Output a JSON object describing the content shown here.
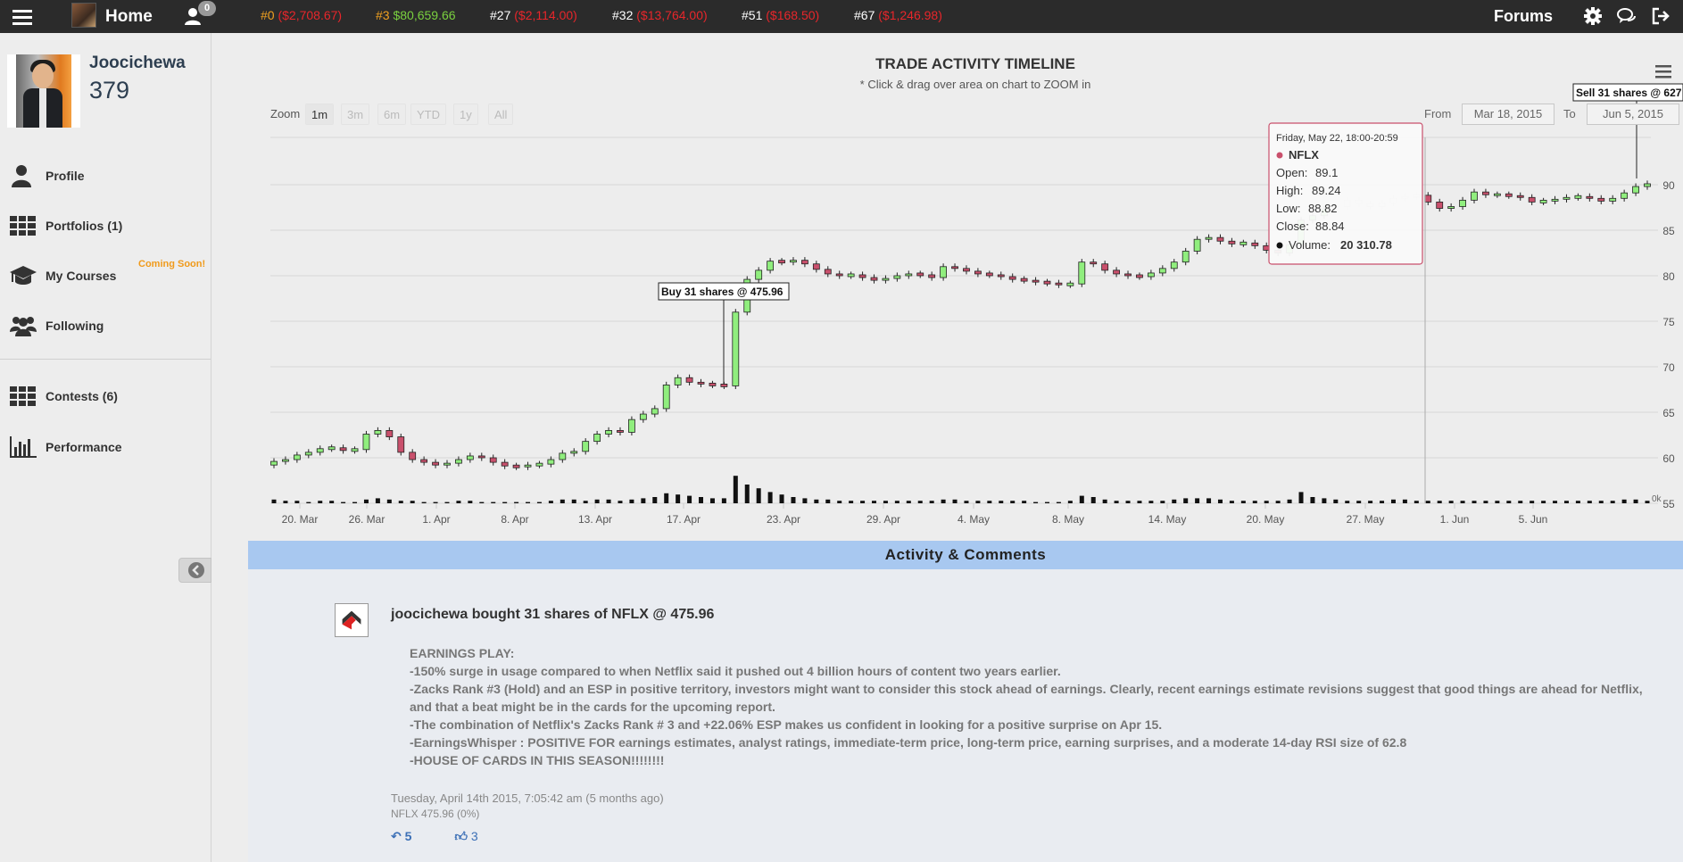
{
  "topbar": {
    "home_label": "Home",
    "notif_count": "0",
    "tickers": [
      {
        "rank": "#0",
        "value": "($2,708.67)",
        "rank_color": "orange",
        "sign": "neg"
      },
      {
        "rank": "#3",
        "value": "$80,659.66",
        "rank_color": "orange",
        "sign": "pos"
      },
      {
        "rank": "#27",
        "value": "($2,114.00)",
        "rank_color": "white",
        "sign": "neg"
      },
      {
        "rank": "#32",
        "value": "($13,764.00)",
        "rank_color": "white",
        "sign": "neg"
      },
      {
        "rank": "#51",
        "value": "($168.50)",
        "rank_color": "white",
        "sign": "neg"
      },
      {
        "rank": "#67",
        "value": "($1,246.98)",
        "rank_color": "white",
        "sign": "neg"
      }
    ],
    "forums_label": "Forums"
  },
  "profile": {
    "name": "Joocichewa",
    "score": "379"
  },
  "sidebar": {
    "items": [
      {
        "label": "Profile",
        "icon": "user-icon"
      },
      {
        "label": "Portfolios (1)",
        "icon": "grid-icon"
      },
      {
        "label": "My Courses",
        "icon": "graduation-cap-icon"
      },
      {
        "label": "Following",
        "icon": "users-icon"
      },
      {
        "label": "Contests (6)",
        "icon": "grid-icon"
      },
      {
        "label": "Performance",
        "icon": "bar-chart-icon"
      }
    ],
    "coming_soon": "Coming Soon!"
  },
  "chart": {
    "title": "TRADE ACTIVITY TIMELINE",
    "subtitle": "* Click & drag over area on chart to ZOOM in",
    "zoom_label": "Zoom",
    "zoom_buttons": [
      "1m",
      "3m",
      "6m",
      "YTD",
      "1y",
      "All"
    ],
    "zoom_active": "1m",
    "from_label": "From",
    "from_value": "Mar 18, 2015",
    "to_label": "To",
    "to_value": "Jun 5, 2015",
    "buy_flag": "Buy 31 shares @ 475.96",
    "sell_flag": "Sell 31 shares @ 627",
    "volume_axis_label": "0k",
    "tooltip": {
      "date": "Friday, May 22, 18:00-20:59",
      "symbol": "NFLX",
      "open_label": "Open:",
      "open": "89.1",
      "high_label": "High:",
      "high": "89.24",
      "low_label": "Low:",
      "low": "88.82",
      "close_label": "Close:",
      "close": "88.84",
      "volume_label": "Volume:",
      "volume": "20 310.78"
    }
  },
  "chart_data": {
    "type": "candlestick",
    "title": "TRADE ACTIVITY TIMELINE",
    "x_tick_labels": [
      "20. Mar",
      "26. Mar",
      "1. Apr",
      "8. Apr",
      "13. Apr",
      "17. Apr",
      "23. Apr",
      "29. Apr",
      "4. May",
      "8. May",
      "14. May",
      "20. May",
      "27. May",
      "1. Jun",
      "5. Jun"
    ],
    "y_tick_labels": [
      "55",
      "60",
      "65",
      "70",
      "75",
      "80",
      "85",
      "90"
    ],
    "ylim": [
      55,
      93
    ],
    "close_series": [
      59.6,
      59.8,
      60.3,
      60.6,
      61.0,
      61.1,
      60.8,
      60.9,
      62.6,
      63.0,
      62.3,
      60.6,
      59.8,
      59.5,
      59.2,
      59.4,
      59.8,
      60.2,
      60.0,
      59.5,
      59.1,
      59.0,
      59.2,
      59.3,
      59.8,
      60.5,
      60.7,
      61.8,
      62.6,
      63.0,
      62.8,
      64.2,
      64.8,
      65.4,
      68.0,
      68.8,
      68.3,
      68.1,
      68.0,
      67.9,
      76.0,
      79.6,
      80.6,
      81.6,
      81.5,
      81.7,
      81.3,
      80.7,
      80.2,
      80.0,
      80.1,
      79.8,
      79.5,
      79.7,
      80.0,
      80.2,
      80.1,
      79.8,
      81.0,
      80.8,
      80.5,
      80.2,
      80.1,
      79.9,
      79.6,
      79.5,
      79.3,
      79.2,
      79.0,
      79.1,
      81.5,
      81.3,
      80.6,
      80.2,
      80.0,
      79.9,
      80.3,
      80.8,
      81.5,
      82.7,
      84.0,
      84.2,
      83.8,
      83.5,
      83.6,
      83.3,
      82.8,
      82.5,
      83.4,
      86.1,
      86.6,
      87.3,
      87.6,
      88.3,
      87.9,
      87.6,
      88.0,
      88.5,
      88.7,
      88.84,
      88.1,
      87.4,
      87.6,
      88.3,
      89.2,
      88.9,
      88.9,
      88.8,
      88.6,
      88.1,
      88.2,
      88.4,
      88.6,
      88.7,
      88.5,
      88.2,
      88.5,
      89.1,
      89.8,
      90.1
    ],
    "volume_series": [
      3,
      2,
      2,
      1,
      2,
      2,
      1,
      1,
      3,
      4,
      3,
      2,
      2,
      1,
      1,
      1,
      2,
      2,
      1,
      1,
      1,
      1,
      1,
      1,
      2,
      3,
      3,
      2,
      3,
      3,
      2,
      3,
      4,
      5,
      8,
      7,
      6,
      5,
      4,
      4,
      22,
      15,
      12,
      9,
      7,
      5,
      4,
      3,
      3,
      2,
      2,
      2,
      2,
      2,
      2,
      2,
      2,
      2,
      3,
      3,
      2,
      2,
      2,
      2,
      2,
      2,
      1,
      1,
      1,
      2,
      6,
      5,
      3,
      2,
      2,
      2,
      2,
      2,
      3,
      4,
      4,
      4,
      3,
      2,
      2,
      2,
      2,
      2,
      3,
      9,
      5,
      4,
      3,
      2,
      2,
      2,
      2,
      3,
      3,
      2,
      2,
      2,
      2,
      2,
      2,
      2,
      2,
      2,
      2,
      2,
      2,
      2,
      2,
      2,
      2,
      2,
      2,
      3,
      3,
      2
    ],
    "markers": [
      {
        "label": "Buy 31 shares @ 475.96",
        "type": "buy"
      },
      {
        "label": "Sell 31 shares @ 627",
        "type": "sell"
      }
    ],
    "colors": {
      "up": "#90ee7e",
      "down": "#c9506c",
      "grid": "#d8d8d8"
    }
  },
  "activity": {
    "header": "Activity & Comments",
    "post": {
      "title": "joocichewa bought 31 shares of NFLX @ 475.96",
      "lines": [
        "EARNINGS PLAY:",
        "-150% surge in usage compared to when Netflix said it pushed out 4 billion hours of content two years earlier.",
        "-Zacks Rank #3 (Hold) and an ESP in positive territory, investors might want to consider this stock ahead of earnings. Clearly, recent earnings estimate revisions suggest that good things are ahead for Netflix, and that a beat might be in the cards for the upcoming report.",
        "-The combination of Netflix's Zacks Rank # 3 and +22.06% ESP makes us confident in looking for a positive surprise on Apr 15.",
        "-EarningsWhisper : POSITIVE FOR earnings estimates, analyst ratings, immediate-term price, long-term price, earning surprises, and a moderate 14-day RSI size of 62.8",
        "-HOUSE OF CARDS IN THIS SEASON!!!!!!!!"
      ],
      "date": "Tuesday, April 14th 2015, 7:05:42 am (5 months ago)",
      "meta": "NFLX 475.96 (0%)",
      "reply_count": "5",
      "like_count": "3"
    }
  }
}
